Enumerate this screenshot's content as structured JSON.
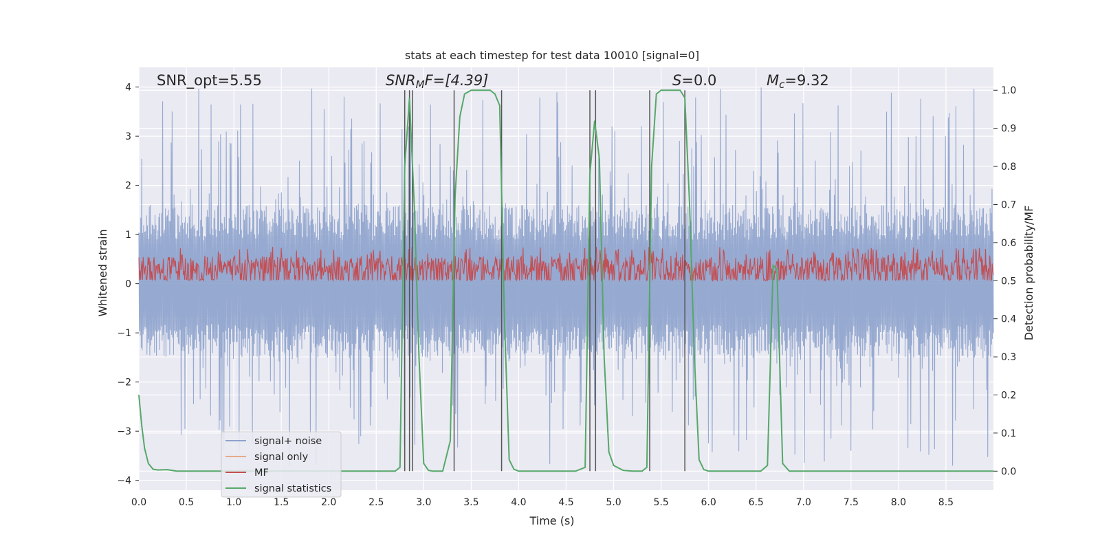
{
  "chart_data": {
    "type": "line",
    "title": "stats at each timestep for test data 10010 [signal=0]",
    "xlabel": "Time (s)",
    "ylabel": "Whitened strain",
    "y2label": "Detection probability/MF",
    "xlim": [
      0,
      9
    ],
    "ylim": [
      -4.2,
      4.4
    ],
    "y2lim": [
      -0.05,
      1.06
    ],
    "x_ticks": [
      0.0,
      0.5,
      1.0,
      1.5,
      2.0,
      2.5,
      3.0,
      3.5,
      4.0,
      4.5,
      5.0,
      5.5,
      6.0,
      6.5,
      7.0,
      7.5,
      8.0,
      8.5
    ],
    "x_tick_labels": [
      "0.0",
      "0.5",
      "1.0",
      "1.5",
      "2.0",
      "2.5",
      "3.0",
      "3.5",
      "4.0",
      "4.5",
      "5.0",
      "5.5",
      "6.0",
      "6.5",
      "7.0",
      "7.5",
      "8.0",
      "8.5"
    ],
    "y_ticks": [
      4,
      3,
      2,
      1,
      0,
      -1,
      -2,
      -3,
      -4
    ],
    "y_tick_labels": [
      "4",
      "3",
      "2",
      "1",
      "0",
      "−1",
      "−2",
      "−3",
      "−4"
    ],
    "y2_ticks": [
      1.0,
      0.9,
      0.8,
      0.7,
      0.6,
      0.5,
      0.4,
      0.3,
      0.2,
      0.1,
      0.0
    ],
    "y2_tick_labels": [
      "1.0",
      "0.9",
      "0.8",
      "0.7",
      "0.6",
      "0.5",
      "0.4",
      "0.3",
      "0.2",
      "0.1",
      "0.0"
    ],
    "grid": true,
    "legend_position": "lower-left",
    "annotations": {
      "snr_opt": "SNR_opt=5.55",
      "snr_mf_sym": "SNR",
      "snr_mf_sub": "M",
      "snr_mf_rest": "F=[4.39]",
      "s_sym": "S",
      "s_rest": "=0.0",
      "mc_sym": "M",
      "mc_sub": "c",
      "mc_rest": "=9.32"
    },
    "series": [
      {
        "name": "signal+ noise",
        "color": "#8da2cc",
        "axis": "left",
        "description_envelope": {
          "dense_low": -1.5,
          "dense_high": 1.6,
          "spikes_high_max": 4.0,
          "spikes_low_min": -3.8,
          "sample_count": 1800
        }
      },
      {
        "name": "signal only",
        "color": "#e8a98a",
        "axis": "left"
      },
      {
        "name": "MF",
        "color": "#c44e52",
        "axis": "right",
        "envelope": {
          "base": 0.5,
          "high_max": 0.59
        }
      },
      {
        "name": "signal statistics",
        "color": "#55a868",
        "axis": "right",
        "x": [
          0.0,
          0.03,
          0.06,
          0.1,
          0.15,
          0.2,
          0.3,
          0.4,
          0.5,
          0.6,
          0.8,
          1.0,
          1.5,
          2.0,
          2.5,
          2.7,
          2.75,
          2.8,
          2.85,
          2.9,
          2.95,
          3.0,
          3.05,
          3.1,
          3.2,
          3.28,
          3.33,
          3.38,
          3.43,
          3.5,
          3.6,
          3.7,
          3.75,
          3.8,
          3.85,
          3.9,
          3.95,
          4.0,
          4.2,
          4.4,
          4.6,
          4.7,
          4.75,
          4.8,
          4.85,
          4.9,
          4.95,
          5.0,
          5.1,
          5.2,
          5.3,
          5.35,
          5.4,
          5.45,
          5.5,
          5.6,
          5.7,
          5.75,
          5.8,
          5.85,
          5.9,
          5.95,
          6.0,
          6.2,
          6.4,
          6.55,
          6.62,
          6.68,
          6.72,
          6.78,
          6.85,
          7.0,
          7.5,
          8.0,
          8.5,
          9.0
        ],
        "values": [
          0.2,
          0.12,
          0.06,
          0.02,
          0.005,
          0.003,
          0.004,
          0.0,
          0.0,
          0.0,
          0.0,
          0.0,
          0.0,
          0.0,
          0.0,
          0.0,
          0.01,
          0.8,
          0.98,
          0.7,
          0.3,
          0.02,
          0.002,
          0.0,
          0.0,
          0.08,
          0.72,
          0.93,
          0.99,
          1.0,
          1.0,
          1.0,
          0.99,
          0.96,
          0.4,
          0.03,
          0.005,
          0.0,
          0.0,
          0.0,
          0.0,
          0.01,
          0.78,
          0.92,
          0.82,
          0.3,
          0.05,
          0.015,
          0.002,
          0.0,
          0.0,
          0.01,
          0.8,
          0.99,
          1.0,
          1.0,
          1.0,
          0.98,
          0.7,
          0.3,
          0.03,
          0.004,
          0.0,
          0.0,
          0.0,
          0.0,
          0.015,
          0.54,
          0.53,
          0.02,
          0.0,
          0.0,
          0.0,
          0.0,
          0.0,
          0.0
        ]
      }
    ],
    "vertical_lines_x": [
      2.8,
      2.85,
      2.88,
      3.32,
      3.82,
      4.75,
      4.81,
      5.38,
      5.75
    ]
  },
  "colors": {
    "plot_background": "#eaeaf2",
    "grid": "#ffffff",
    "vline": "#555555"
  }
}
